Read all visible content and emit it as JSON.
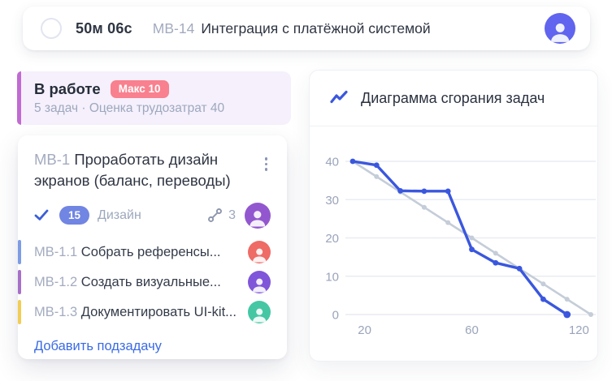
{
  "topbar": {
    "timer": "50м 06с",
    "task_key": "МВ-14",
    "task_title": "Интеграция с платёжной системой"
  },
  "column": {
    "title": "В работе",
    "limit_badge": "Макс 10",
    "summary": "5 задач · Оценка трудозатрат 40"
  },
  "card": {
    "key": "МВ-1",
    "title": "Проработать дизайн экранов (баланс, переводы)",
    "points_badge": "15",
    "tag": "Дизайн",
    "subtask_count": "3",
    "subtasks": [
      {
        "key": "МВ-1.1",
        "title": "Собрать референсы...",
        "stripe_color": "#7d9ce5",
        "avatar_color": "#ee6b66"
      },
      {
        "key": "МВ-1.2",
        "title": "Создать визуальные...",
        "stripe_color": "#a76fc9",
        "avatar_color": "#7f56d9"
      },
      {
        "key": "МВ-1.3",
        "title": "Документировать UI-kit...",
        "stripe_color": "#f2cc55",
        "avatar_color": "#45c7a4"
      }
    ],
    "add_subtask": "Добавить подзадачу"
  },
  "chart": {
    "title": "Диаграмма сгорания задач"
  },
  "chart_data": {
    "type": "line",
    "title": "Диаграмма сгорания задач",
    "y_ticks": [
      0,
      10,
      20,
      30,
      40
    ],
    "ylim": [
      0,
      42
    ],
    "x_tick_labels": [
      "20",
      "60",
      "120"
    ],
    "x_tick_positions": [
      0.5,
      5,
      9.5
    ],
    "x_index_range": [
      0,
      10
    ],
    "grid": true,
    "legend": false,
    "series": [
      {
        "name": "ideal",
        "color": "#c4cdd8",
        "values": [
          40,
          36,
          32,
          28,
          24,
          20,
          16,
          12,
          8,
          4,
          0
        ]
      },
      {
        "name": "actual",
        "color": "#3a57de",
        "values": [
          40,
          39,
          32.3,
          32.2,
          32.2,
          17,
          13.5,
          12,
          4,
          0
        ]
      }
    ]
  },
  "colors": {
    "topbar_avatar": "#6064ee",
    "main_avatar": "#9257ce",
    "grid_line": "#e9ecf2",
    "axis_label": "#9aa4ba"
  }
}
